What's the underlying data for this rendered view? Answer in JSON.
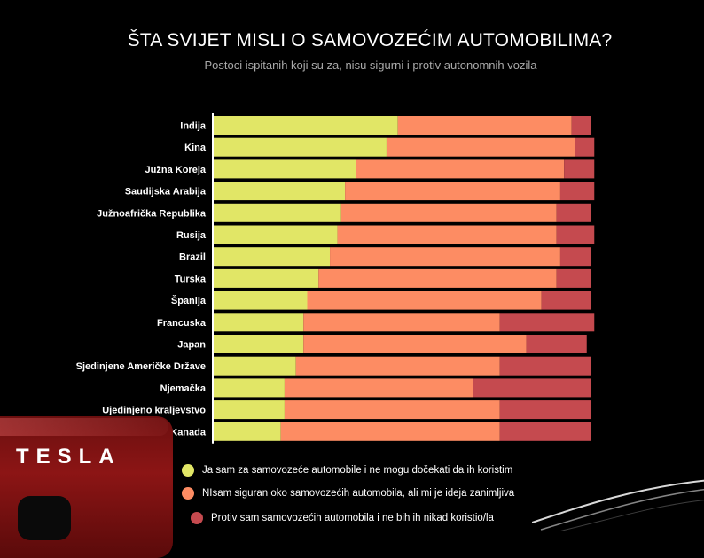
{
  "colors": {
    "yes": "#e1e666",
    "unsure": "#fd8c63",
    "no": "#c54a4f"
  },
  "logo_text": "TESLA",
  "chart_data": {
    "type": "bar",
    "orientation": "horizontal",
    "stacked": true,
    "title": "ŠTA SVIJET MISLI O SAMOVOZEĆIM AUTOMOBILIMA?",
    "subtitle": "Postoci ispitanih koji su za, nisu sigurni i protiv autonomnih vozila",
    "categories": [
      "Indija",
      "Kina",
      "Južna Koreja",
      "Saudijska Arabija",
      "Južnoafrička Republika",
      "Rusija",
      "Brazil",
      "Turska",
      "Španija",
      "Francuska",
      "Japan",
      "Sjedinjene Američke Države",
      "Njemačka",
      "Ujedinjeno kraljevstvo",
      "Kanada"
    ],
    "series": [
      {
        "name": "Ja sam za samovozeće automobile i ne mogu dočekati da ih koristim",
        "values": [
          49,
          46,
          38,
          35,
          34,
          33,
          31,
          28,
          25,
          24,
          24,
          22,
          19,
          19,
          18
        ]
      },
      {
        "name": "NIsam siguran oko samovozećih automobila, ali mi je ideja zanimljiva",
        "values": [
          46,
          50,
          55,
          57,
          57,
          58,
          61,
          63,
          62,
          52,
          59,
          54,
          50,
          57,
          58
        ]
      },
      {
        "name": "Protiv sam samovozećih automobila i ne bih ih nikad koristio/la",
        "values": [
          5,
          5,
          8,
          9,
          9,
          10,
          8,
          9,
          13,
          25,
          16,
          24,
          31,
          24,
          24
        ]
      }
    ],
    "xlim": [
      0,
      100
    ],
    "legend_position": "bottom",
    "grid": false
  }
}
